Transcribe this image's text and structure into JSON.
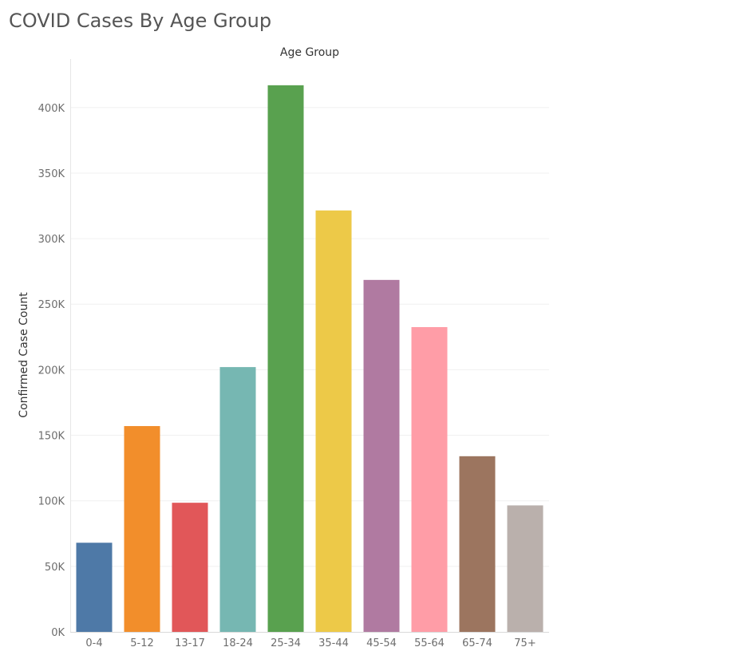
{
  "title": "COVID Cases By Age Group",
  "chart_data": {
    "type": "bar",
    "title": "COVID Cases By Age Group",
    "xlabel": "Age Group",
    "ylabel": "Confirmed Case Count",
    "categories": [
      "0-4",
      "5-12",
      "13-17",
      "18-24",
      "25-34",
      "35-44",
      "45-54",
      "55-64",
      "65-74",
      "75+"
    ],
    "values": [
      68000,
      157000,
      98500,
      202000,
      417000,
      321500,
      268500,
      232500,
      134000,
      96500
    ],
    "colors": [
      "#4e79a7",
      "#f28e2b",
      "#e15759",
      "#76b7b2",
      "#59a14f",
      "#edc948",
      "#b07aa1",
      "#ff9da7",
      "#9c755f",
      "#bab0ac"
    ],
    "yticks": [
      0,
      50000,
      100000,
      150000,
      200000,
      250000,
      300000,
      350000,
      400000
    ],
    "ytick_labels": [
      "0K",
      "50K",
      "100K",
      "150K",
      "200K",
      "250K",
      "300K",
      "350K",
      "400K"
    ],
    "ylim": [
      0,
      437000
    ],
    "grid": true,
    "legend": "none"
  }
}
